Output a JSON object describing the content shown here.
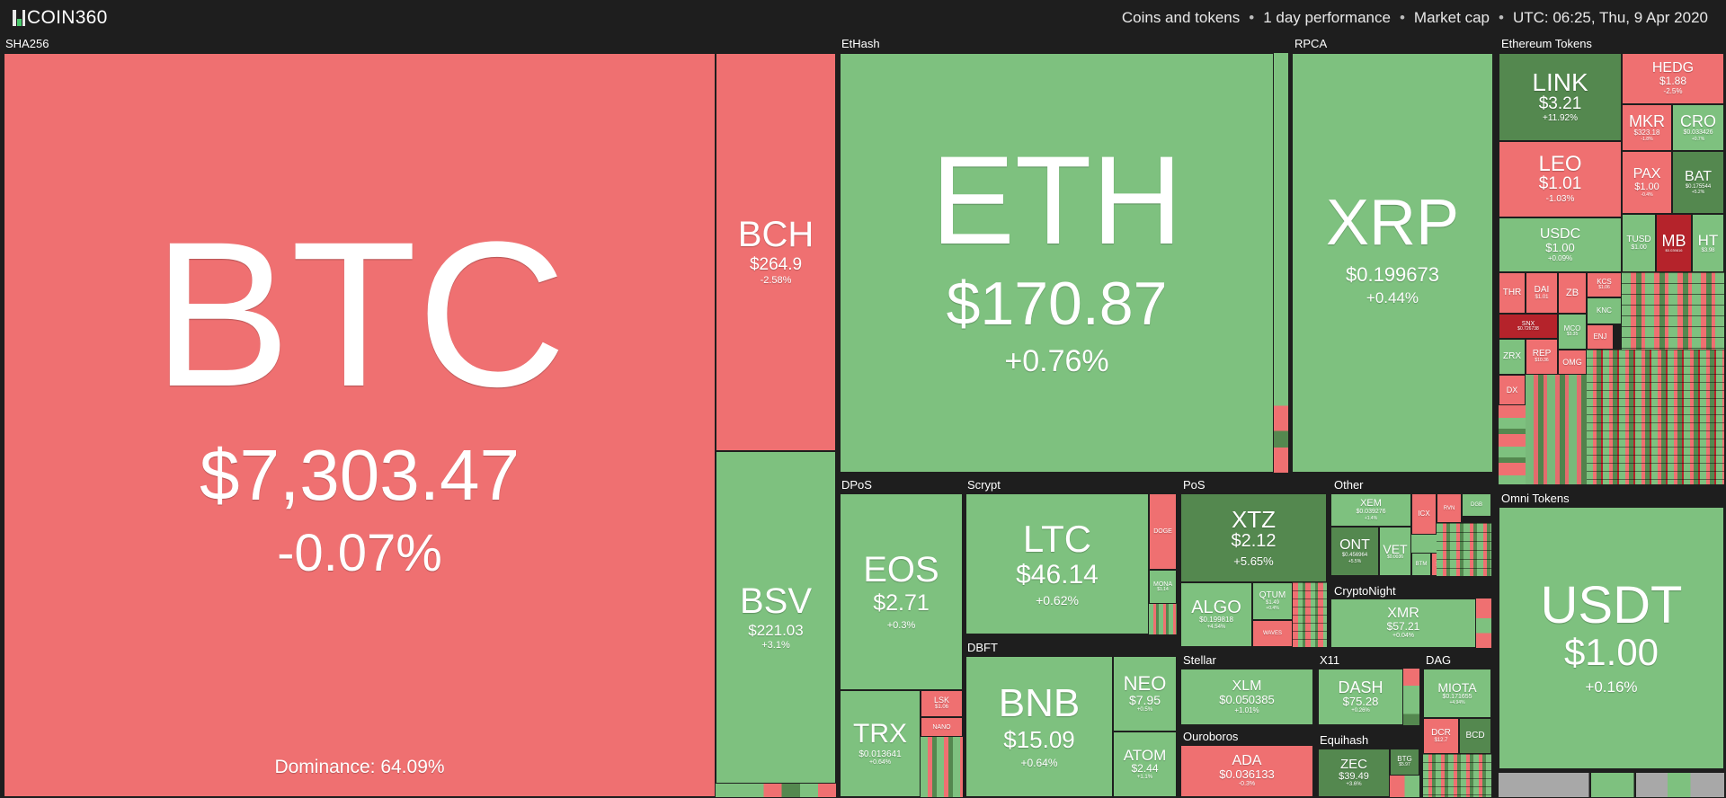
{
  "header": {
    "brand": "COIN360",
    "logo_colors": [
      "#4ac96b",
      "#ef7071",
      "#e9e9e9"
    ],
    "filters": [
      "Coins and tokens",
      "1 day performance",
      "Market cap"
    ],
    "time": "UTC: 06:25, Thu, 9 Apr 2020",
    "separator": "•"
  },
  "colors": {
    "up": "#7ec17f",
    "strong_up": "#54884f",
    "down": "#ef7071",
    "strong_down": "#b5232b",
    "neutral": "#a8a8a8",
    "background": "#1e1e1e"
  },
  "groups": {
    "sha256": "SHA256",
    "ethash": "EtHash",
    "rpca": "RPCA",
    "eth_tokens": "Ethereum Tokens",
    "dpos": "DPoS",
    "scrypt": "Scrypt",
    "pos": "PoS",
    "other": "Other",
    "cryptonight": "CryptoNight",
    "dbft": "DBFT",
    "stellar": "Stellar",
    "x11": "X11",
    "dag": "DAG",
    "ouroboros": "Ouroboros",
    "equihash": "Equihash",
    "omni": "Omni Tokens"
  },
  "coins": {
    "btc": {
      "symbol": "BTC",
      "price": "$7,303.47",
      "change": "-0.07%"
    },
    "bch": {
      "symbol": "BCH",
      "price": "$264.9",
      "change": "-2.58%"
    },
    "bsv": {
      "symbol": "BSV",
      "price": "$221.03",
      "change": "+3.1%"
    },
    "eth": {
      "symbol": "ETH",
      "price": "$170.87",
      "change": "+0.76%"
    },
    "xrp": {
      "symbol": "XRP",
      "price": "$0.199673",
      "change": "+0.44%"
    },
    "link": {
      "symbol": "LINK",
      "price": "$3.21",
      "change": "+11.92%"
    },
    "hedg": {
      "symbol": "HEDG",
      "price": "$1.88",
      "change": "-2.5%"
    },
    "mkr": {
      "symbol": "MKR",
      "price": "$323.18",
      "change": "-1.8%"
    },
    "cro": {
      "symbol": "CRO",
      "price": "$0.033426",
      "change": "+0.7%"
    },
    "leo": {
      "symbol": "LEO",
      "price": "$1.01",
      "change": "-1.03%"
    },
    "pax": {
      "symbol": "PAX",
      "price": "$1.00",
      "change": "-0.4%"
    },
    "bat": {
      "symbol": "BAT",
      "price": "$0.175544",
      "change": "+5.2%"
    },
    "usdc": {
      "symbol": "USDC",
      "price": "$1.00",
      "change": "+0.09%"
    },
    "tusd": {
      "symbol": "TUSD",
      "price": "$1.00",
      "change": "+0.1%"
    },
    "mb": {
      "symbol": "MB",
      "price": "$0.039816",
      "change": "-9.1%"
    },
    "ht": {
      "symbol": "HT",
      "price": "$3.98",
      "change": "+1.2%"
    },
    "thr": {
      "symbol": "THR"
    },
    "dai": {
      "symbol": "DAI",
      "price": "$1.01"
    },
    "zb": {
      "symbol": "ZB"
    },
    "kcs": {
      "symbol": "KCS",
      "price": "$1.06"
    },
    "knc": {
      "symbol": "KNC"
    },
    "snx": {
      "symbol": "SNX",
      "price": "$0.726738"
    },
    "mco": {
      "symbol": "MCO",
      "price": "$3.35"
    },
    "enj": {
      "symbol": "ENJ"
    },
    "zrx": {
      "symbol": "ZRX"
    },
    "rep": {
      "symbol": "REP",
      "price": "$10.36"
    },
    "omg": {
      "symbol": "OMG"
    },
    "dx": {
      "symbol": "DX"
    },
    "eos": {
      "symbol": "EOS",
      "price": "$2.71",
      "change": "+0.3%"
    },
    "trx": {
      "symbol": "TRX",
      "price": "$0.013641",
      "change": "+0.64%"
    },
    "lsk": {
      "symbol": "LSK",
      "price": "$1.06"
    },
    "nano": {
      "symbol": "NANO"
    },
    "ltc": {
      "symbol": "LTC",
      "price": "$46.14",
      "change": "+0.62%"
    },
    "doge": {
      "symbol": "DOGE"
    },
    "mona": {
      "symbol": "MONA",
      "price": "$1.14"
    },
    "bnb": {
      "symbol": "BNB",
      "price": "$15.09",
      "change": "+0.64%"
    },
    "neo": {
      "symbol": "NEO",
      "price": "$7.95",
      "change": "+0.5%"
    },
    "atom": {
      "symbol": "ATOM",
      "price": "$2.44",
      "change": "+1.1%"
    },
    "xtz": {
      "symbol": "XTZ",
      "price": "$2.12",
      "change": "+5.65%"
    },
    "algo": {
      "symbol": "ALGO",
      "price": "$0.199818",
      "change": "+4.54%"
    },
    "qtum": {
      "symbol": "QTUM",
      "price": "$1.49",
      "change": "+0.4%"
    },
    "waves": {
      "symbol": "WAVES"
    },
    "xem": {
      "symbol": "XEM",
      "price": "$0.039276",
      "change": "+1.4%"
    },
    "ont": {
      "symbol": "ONT",
      "price": "$0.456964",
      "change": "+5.5%"
    },
    "vet": {
      "symbol": "VET",
      "price": "$0.0036"
    },
    "icx": {
      "symbol": "ICX"
    },
    "rvn": {
      "symbol": "RVN"
    },
    "dgb": {
      "symbol": "DGB"
    },
    "btm": {
      "symbol": "BTM"
    },
    "sc": {
      "symbol": "SC"
    },
    "xmr": {
      "symbol": "XMR",
      "price": "$57.21",
      "change": "+0.04%"
    },
    "xlm": {
      "symbol": "XLM",
      "price": "$0.050385",
      "change": "+1.01%"
    },
    "dash": {
      "symbol": "DASH",
      "price": "$75.28",
      "change": "+0.26%"
    },
    "miota": {
      "symbol": "MIOTA",
      "price": "$0.171655",
      "change": "+4.94%"
    },
    "dcr": {
      "symbol": "DCR",
      "price": "$12.7"
    },
    "bcd": {
      "symbol": "BCD"
    },
    "ada": {
      "symbol": "ADA",
      "price": "$0.036133",
      "change": "-0.3%"
    },
    "zec": {
      "symbol": "ZEC",
      "price": "$39.49",
      "change": "+3.6%"
    },
    "btg": {
      "symbol": "BTG",
      "price": "$5.97"
    },
    "usdt": {
      "symbol": "USDT",
      "price": "$1.00",
      "change": "+0.16%"
    }
  },
  "footer": {
    "dominance": "Dominance: 64.09%"
  }
}
